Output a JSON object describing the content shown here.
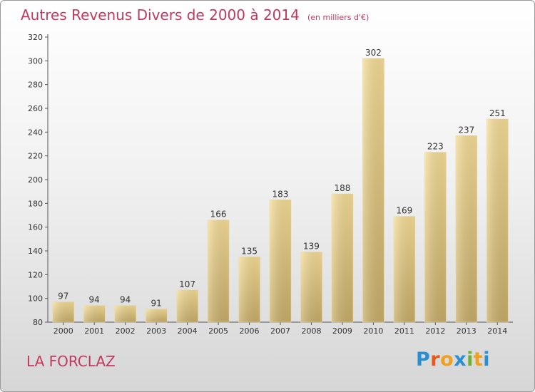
{
  "title": "Autres Revenus Divers de 2000 à 2014",
  "subtitle": "(en milliers d'€)",
  "commune": "LA FORCLAZ",
  "logo": {
    "text": "Proxiti",
    "letters": [
      "P",
      "r",
      "o",
      "x",
      "i",
      "t",
      "i"
    ],
    "colors": [
      "#2a8fd0",
      "#e8591a",
      "#f0a020",
      "#2a8fd0",
      "#6cb030",
      "#f0a020",
      "#2a8fd0"
    ]
  },
  "colors": {
    "title": "#c03a5f",
    "bar_light": "#f5dc96",
    "bar_dark": "#c8ad68"
  },
  "chart_data": {
    "type": "bar",
    "categories": [
      "2000",
      "2001",
      "2002",
      "2003",
      "2004",
      "2005",
      "2006",
      "2007",
      "2008",
      "2009",
      "2010",
      "2011",
      "2012",
      "2013",
      "2014"
    ],
    "values": [
      97,
      94,
      94,
      91,
      107,
      166,
      135,
      183,
      139,
      188,
      302,
      169,
      223,
      237,
      251
    ],
    "y_ticks": [
      80,
      100,
      120,
      140,
      160,
      180,
      200,
      220,
      240,
      260,
      280,
      300,
      320
    ],
    "ylim": [
      80,
      320
    ],
    "grid": false,
    "data_labels": true
  }
}
